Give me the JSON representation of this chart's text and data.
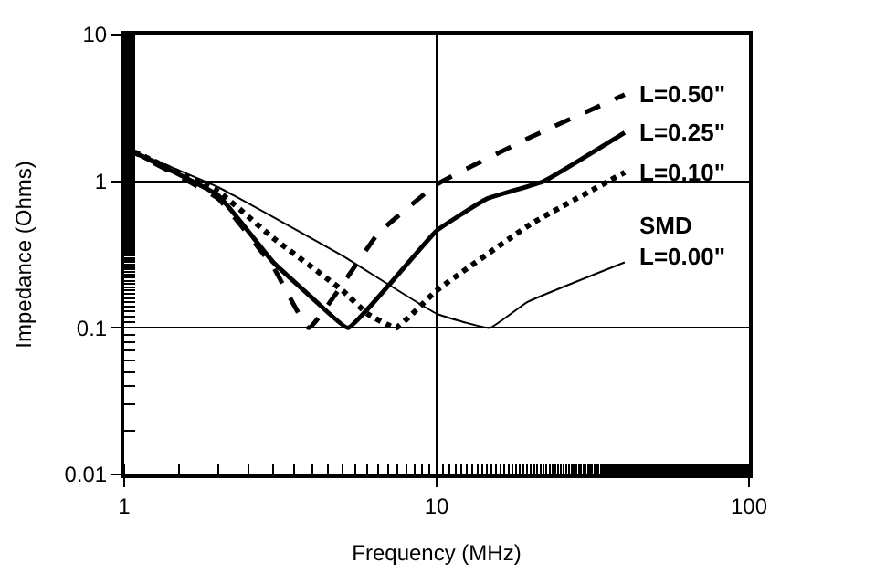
{
  "chart_data": {
    "type": "line",
    "xlabel": "Frequency (MHz)",
    "ylabel": "Impedance (Ohms)",
    "log": "xy",
    "grid": true,
    "legend": false,
    "marker": "none",
    "xlim": [
      1,
      100
    ],
    "xticks": [
      1,
      10,
      100
    ],
    "ylim": [
      0.01,
      10
    ],
    "yticks": [
      0.01,
      0.1,
      1,
      10
    ],
    "series": [
      {
        "name": "L=0.50\"",
        "color": "#000000",
        "line_style": "dashed",
        "x": [
          1,
          2,
          3,
          3.9,
          6.5,
          10,
          20,
          40
        ],
        "values": [
          1.7,
          0.76,
          0.26,
          0.1,
          0.44,
          0.95,
          2.0,
          3.9
        ]
      },
      {
        "name": "L=0.25\"",
        "color": "#000000",
        "line_style": "solid",
        "x": [
          1,
          2,
          3,
          4,
          5.2,
          10,
          14.5,
          22,
          40
        ],
        "values": [
          1.7,
          0.8,
          0.28,
          0.16,
          0.1,
          0.46,
          0.76,
          1.0,
          2.15
        ]
      },
      {
        "name": "L=0.10\"",
        "color": "#000000",
        "line_style": "dotted",
        "x": [
          1,
          2,
          3,
          5,
          6,
          7.4,
          10,
          20,
          40
        ],
        "values": [
          1.7,
          0.85,
          0.41,
          0.18,
          0.125,
          0.1,
          0.18,
          0.51,
          1.15
        ]
      },
      {
        "name": "SMD\nL=0.00\"",
        "color": "#000000",
        "line_style": "solid",
        "x": [
          1,
          2,
          5,
          10,
          14.8,
          19.5,
          40
        ],
        "values": [
          1.7,
          0.91,
          0.31,
          0.125,
          0.1,
          0.15,
          0.28
        ]
      }
    ]
  }
}
